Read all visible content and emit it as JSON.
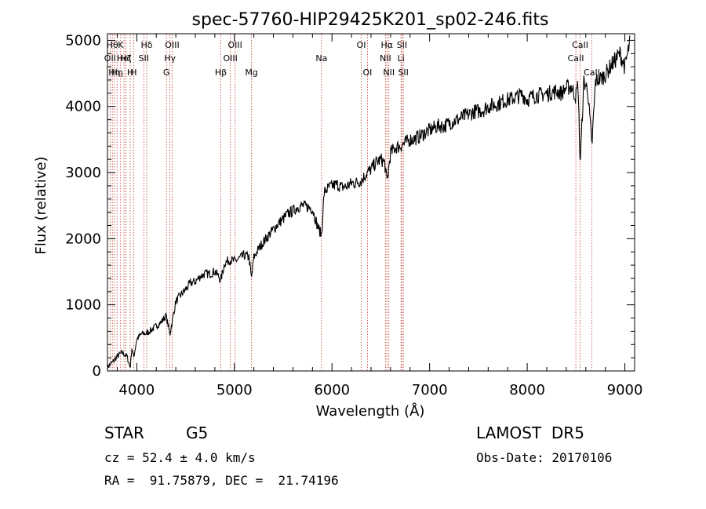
{
  "chart_data": {
    "type": "line",
    "title": "spec-57760-HIP29425K201_sp02-246.fits",
    "xlabel": "Wavelength (Å)",
    "ylabel": "Flux (relative)",
    "xlim": [
      3700,
      9100
    ],
    "ylim": [
      0,
      5100
    ],
    "xticks": [
      4000,
      5000,
      6000,
      7000,
      8000,
      9000
    ],
    "yticks": [
      0,
      1000,
      2000,
      3000,
      4000,
      5000
    ],
    "grid": false,
    "series": [
      {
        "x": [
          3700,
          3750,
          3800,
          3850,
          3900,
          3933,
          3950,
          3968,
          4000,
          4050,
          4100,
          4150,
          4200,
          4250,
          4300,
          4340,
          4400,
          4450,
          4500,
          4550,
          4600,
          4650,
          4700,
          4750,
          4800,
          4861,
          4900,
          4950,
          5000,
          5050,
          5100,
          5150,
          5175,
          5200,
          5250,
          5300,
          5350,
          5400,
          5450,
          5500,
          5550,
          5600,
          5650,
          5700,
          5750,
          5800,
          5850,
          5893,
          5920,
          5950,
          6000,
          6050,
          6100,
          6150,
          6200,
          6250,
          6300,
          6350,
          6400,
          6450,
          6500,
          6540,
          6563,
          6600,
          6650,
          6700,
          6750,
          6800,
          6850,
          6900,
          6950,
          7000,
          7050,
          7100,
          7150,
          7200,
          7250,
          7300,
          7350,
          7400,
          7450,
          7500,
          7550,
          7600,
          7650,
          7700,
          7750,
          7800,
          7850,
          7900,
          7950,
          8000,
          8050,
          8100,
          8150,
          8200,
          8250,
          8300,
          8350,
          8400,
          8450,
          8498,
          8520,
          8542,
          8580,
          8620,
          8662,
          8700,
          8750,
          8800,
          8850,
          8900,
          8950,
          9000,
          9050
        ],
        "values": [
          60,
          130,
          220,
          280,
          220,
          50,
          350,
          200,
          480,
          560,
          570,
          620,
          680,
          740,
          840,
          560,
          1050,
          1150,
          1230,
          1330,
          1350,
          1430,
          1470,
          1470,
          1510,
          1380,
          1630,
          1680,
          1660,
          1700,
          1750,
          1720,
          1400,
          1720,
          1850,
          1960,
          2050,
          2140,
          2230,
          2300,
          2380,
          2420,
          2480,
          2500,
          2480,
          2450,
          2200,
          2050,
          2700,
          2750,
          2800,
          2820,
          2780,
          2790,
          2840,
          2850,
          2880,
          2980,
          3050,
          3150,
          3200,
          3150,
          2850,
          3300,
          3380,
          3400,
          3450,
          3500,
          3510,
          3550,
          3600,
          3640,
          3680,
          3710,
          3700,
          3750,
          3780,
          3810,
          3850,
          3880,
          3920,
          3930,
          3950,
          4000,
          4020,
          4040,
          4080,
          4100,
          4120,
          4150,
          4180,
          4100,
          4150,
          4170,
          4180,
          4190,
          4210,
          4230,
          4200,
          4280,
          4300,
          4150,
          4350,
          3120,
          4380,
          4250,
          3400,
          4390,
          4420,
          4480,
          4600,
          4700,
          4800,
          4600,
          4950
        ]
      }
    ],
    "lines": [
      {
        "x": 3727,
        "label": "OII",
        "row": 1
      },
      {
        "x": 3750,
        "label": "Hθ",
        "row": 0
      },
      {
        "x": 3771,
        "label": "Hη",
        "row": 2
      },
      {
        "x": 3798,
        "label": "Hη",
        "row": 2
      },
      {
        "x": 3835,
        "label": "K",
        "row": 0
      },
      {
        "x": 3869,
        "label": "HeI",
        "row": 1
      },
      {
        "x": 3889,
        "label": "Hζ",
        "row": 1
      },
      {
        "x": 3933,
        "label": "H",
        "row": 2
      },
      {
        "x": 3968,
        "label": "H",
        "row": 2
      },
      {
        "x": 4072,
        "label": "SII",
        "row": 1
      },
      {
        "x": 4102,
        "label": "Hδ",
        "row": 0
      },
      {
        "x": 4304,
        "label": "G",
        "row": 2
      },
      {
        "x": 4340,
        "label": "Hγ",
        "row": 1
      },
      {
        "x": 4363,
        "label": "OIII",
        "row": 0
      },
      {
        "x": 4861,
        "label": "Hβ",
        "row": 2
      },
      {
        "x": 4959,
        "label": "OIII",
        "row": 1
      },
      {
        "x": 5007,
        "label": "OIII",
        "row": 0
      },
      {
        "x": 5175,
        "label": "Mg",
        "row": 2
      },
      {
        "x": 5893,
        "label": "Na",
        "row": 1
      },
      {
        "x": 6300,
        "label": "OI",
        "row": 0
      },
      {
        "x": 6363,
        "label": "OI",
        "row": 2
      },
      {
        "x": 6548,
        "label": "NII",
        "row": 1
      },
      {
        "x": 6563,
        "label": "Hα",
        "row": 0
      },
      {
        "x": 6583,
        "label": "NII",
        "row": 2
      },
      {
        "x": 6707,
        "label": "Li",
        "row": 1
      },
      {
        "x": 6717,
        "label": "SII",
        "row": 0
      },
      {
        "x": 6731,
        "label": "SII",
        "row": 2
      },
      {
        "x": 8498,
        "label": "CaII",
        "row": 1
      },
      {
        "x": 8542,
        "label": "CaII",
        "row": 0
      },
      {
        "x": 8662,
        "label": "CaII",
        "row": 2
      }
    ]
  },
  "info": {
    "class": "STAR",
    "subclass": "G5",
    "survey": "LAMOST  DR5",
    "cz": "cz = 52.4 ± 4.0 km/s",
    "obs_date": "Obs-Date: 20170106",
    "radec": "RA =  91.75879, DEC =  21.74196"
  }
}
